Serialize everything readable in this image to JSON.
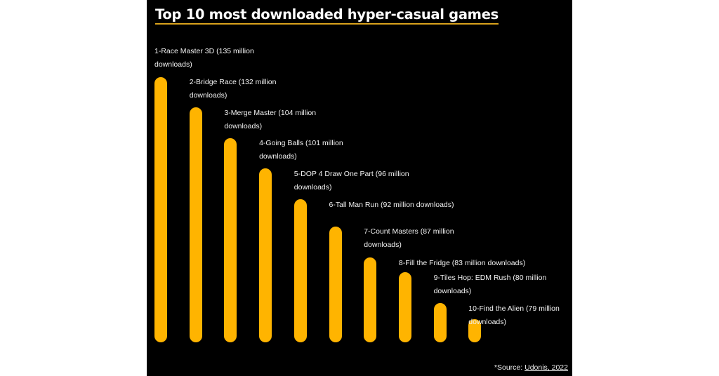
{
  "chart_data": {
    "type": "bar",
    "title": "Top 10 most downloaded hyper-casual games",
    "categories": [
      "Race Master 3D",
      "Bridge Race",
      "Merge Master",
      "Going Balls",
      "DOP 4 Draw One Part",
      "Tall Man Run",
      "Count Masters",
      "Fill the Fridge",
      "Tiles Hop: EDM Rush",
      "Find the Alien"
    ],
    "values": [
      135,
      132,
      104,
      101,
      96,
      92,
      87,
      83,
      80,
      79
    ],
    "unit": "million downloads",
    "labels": [
      "1-Race Master 3D (135 million downloads)",
      "2-Bridge Race (132 million downloads)",
      "3-Merge Master (104 million downloads)",
      "4-Going Balls (101 million downloads)",
      "5-DOP 4 Draw One Part (96 million downloads)",
      "6-Tall Man Run (92 million downloads)",
      "7-Count Masters (87 million downloads)",
      "8-Fill the Fridge (83 million downloads)",
      "9-Tiles Hop: EDM Rush (80 million downloads)",
      "10-Find the Alien (79 million downloads)"
    ],
    "bar_color": "#FFB400",
    "background": "#000000",
    "grid": false,
    "orientation": "vertical"
  },
  "source": {
    "prefix": "*Source: ",
    "link": "Udonis, 2022"
  }
}
